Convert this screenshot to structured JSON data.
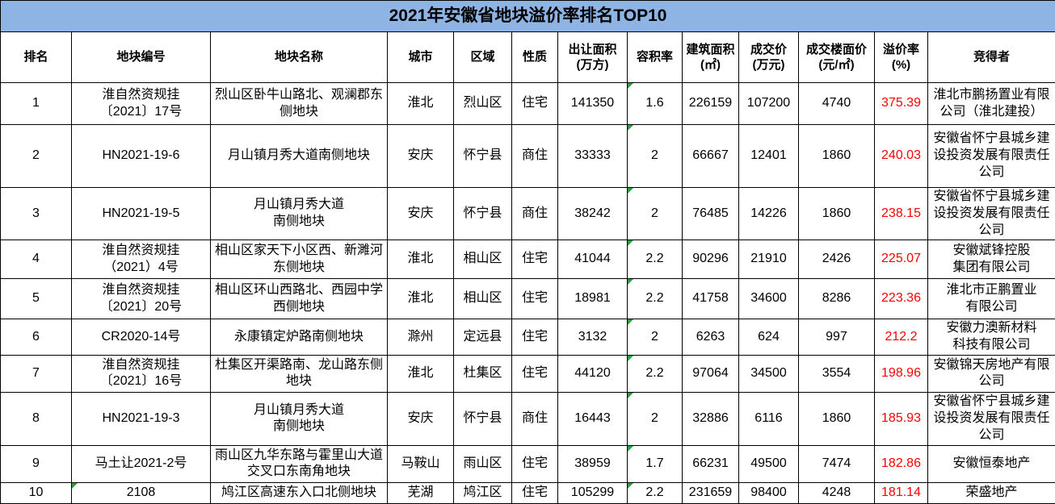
{
  "title": "2021年安徽省地块溢价率排名TOP10",
  "colors": {
    "title_bg": "#8DB4E2",
    "premium_text": "#FF0000",
    "indicator_green": "#2E9E3E",
    "border": "#000000"
  },
  "table": {
    "columns": [
      {
        "key": "rank",
        "label": "排名"
      },
      {
        "key": "code",
        "label": "地块编号"
      },
      {
        "key": "name",
        "label": "地块名称"
      },
      {
        "key": "city",
        "label": "城市"
      },
      {
        "key": "district",
        "label": "区域"
      },
      {
        "key": "type",
        "label": "性质"
      },
      {
        "key": "area",
        "label": "出让面积\n(万方)"
      },
      {
        "key": "plot_ratio",
        "label": "容积率"
      },
      {
        "key": "build_area",
        "label": "建筑面积\n(㎡)"
      },
      {
        "key": "price",
        "label": "成交价\n(万元)"
      },
      {
        "key": "floor_price",
        "label": "成交楼面价\n(元/㎡)"
      },
      {
        "key": "premium",
        "label": "溢价率\n(%)"
      },
      {
        "key": "winner",
        "label": "竞得者"
      }
    ],
    "rows": [
      {
        "rank": "1",
        "code": "淮自然资规挂\n〔2021〕17号",
        "name": "烈山区卧牛山路北、观澜郡东\n侧地块",
        "city": "淮北",
        "district": "烈山区",
        "type": "住宅",
        "area": "141350",
        "plot_ratio": "1.6",
        "build_area": "226159",
        "price": "107200",
        "floor_price": "4740",
        "premium": "375.39",
        "winner": "淮北市鹏扬置业有限\n公司（淮北建投）",
        "indicators": [
          "plot_ratio"
        ]
      },
      {
        "rank": "2",
        "code": "HN2021-19-6",
        "name": "月山镇月秀大道南侧地块",
        "city": "安庆",
        "district": "怀宁县",
        "type": "商住",
        "area": "33333",
        "plot_ratio": "2",
        "build_area": "66667",
        "price": "12401",
        "floor_price": "1860",
        "premium": "240.03",
        "winner": "安徽省怀宁县城乡建\n设投资发展有限责任\n公司",
        "indicators": [
          "plot_ratio"
        ]
      },
      {
        "rank": "3",
        "code": "HN2021-19-5",
        "name": "月山镇月秀大道\n南侧地块",
        "city": "安庆",
        "district": "怀宁县",
        "type": "商住",
        "area": "38242",
        "plot_ratio": "2",
        "build_area": "76485",
        "price": "14226",
        "floor_price": "1860",
        "premium": "238.15",
        "winner": "安徽省怀宁县城乡建\n设投资发展有限责任\n公司",
        "indicators": [
          "plot_ratio"
        ]
      },
      {
        "rank": "4",
        "code": "淮自然资规挂\n（2021）4号",
        "name": "相山区家天下小区西、新濉河\n东侧地块",
        "city": "淮北",
        "district": "相山区",
        "type": "住宅",
        "area": "41044",
        "plot_ratio": "2.2",
        "build_area": "90296",
        "price": "21910",
        "floor_price": "2426",
        "premium": "225.07",
        "winner": "安徽斌锋控股\n集团有限公司",
        "indicators": [
          "plot_ratio"
        ]
      },
      {
        "rank": "5",
        "code": "淮自然资规挂\n〔2021〕20号",
        "name": "相山区环山西路北、西园中学\n西侧地块",
        "city": "淮北",
        "district": "相山区",
        "type": "住宅",
        "area": "18981",
        "plot_ratio": "2.2",
        "build_area": "41758",
        "price": "34600",
        "floor_price": "8286",
        "premium": "223.36",
        "winner": "淮北市正鹏置业\n有限公司",
        "indicators": [
          "plot_ratio"
        ]
      },
      {
        "rank": "6",
        "code": "CR2020-14号",
        "name": "永康镇定炉路南侧地块",
        "city": "滁州",
        "district": "定远县",
        "type": "住宅",
        "area": "3132",
        "plot_ratio": "2",
        "build_area": "6263",
        "price": "624",
        "floor_price": "997",
        "premium": "212.2",
        "winner": "安徽力澳新材料\n科技有限公司",
        "indicators": [
          "plot_ratio"
        ]
      },
      {
        "rank": "7",
        "code": "淮自然资规挂\n〔2021〕16号",
        "name": "杜集区开渠路南、龙山路东侧\n地块",
        "city": "淮北",
        "district": "杜集区",
        "type": "住宅",
        "area": "44120",
        "plot_ratio": "2.2",
        "build_area": "97064",
        "price": "34500",
        "floor_price": "3554",
        "premium": "198.96",
        "winner": "安徽锦天房地产有限\n公司",
        "indicators": [
          "plot_ratio"
        ]
      },
      {
        "rank": "8",
        "code": "HN2021-19-3",
        "name": "月山镇月秀大道\n南侧地块",
        "city": "安庆",
        "district": "怀宁县",
        "type": "商住",
        "area": "16443",
        "plot_ratio": "2",
        "build_area": "32886",
        "price": "6116",
        "floor_price": "1860",
        "premium": "185.93",
        "winner": "安徽省怀宁县城乡建\n设投资发展有限责任\n公司",
        "indicators": [
          "plot_ratio"
        ]
      },
      {
        "rank": "9",
        "code": "马土让2021-2号",
        "name": "雨山区九华东路与霍里山大道\n交叉口东南角地块",
        "city": "马鞍山",
        "district": "雨山区",
        "type": "住宅",
        "area": "38959",
        "plot_ratio": "1.7",
        "build_area": "66231",
        "price": "49500",
        "floor_price": "7474",
        "premium": "182.86",
        "winner": "安徽恒泰地产",
        "indicators": [
          "plot_ratio"
        ]
      },
      {
        "rank": "10",
        "code": "2108",
        "name": "鸠江区高速东入口北侧地块",
        "city": "芜湖",
        "district": "鸠江区",
        "type": "住宅",
        "area": "105299",
        "plot_ratio": "2.2",
        "build_area": "231659",
        "price": "98400",
        "floor_price": "4248",
        "premium": "181.14",
        "winner": "荣盛地产",
        "indicators": [
          "code",
          "plot_ratio"
        ]
      }
    ]
  }
}
